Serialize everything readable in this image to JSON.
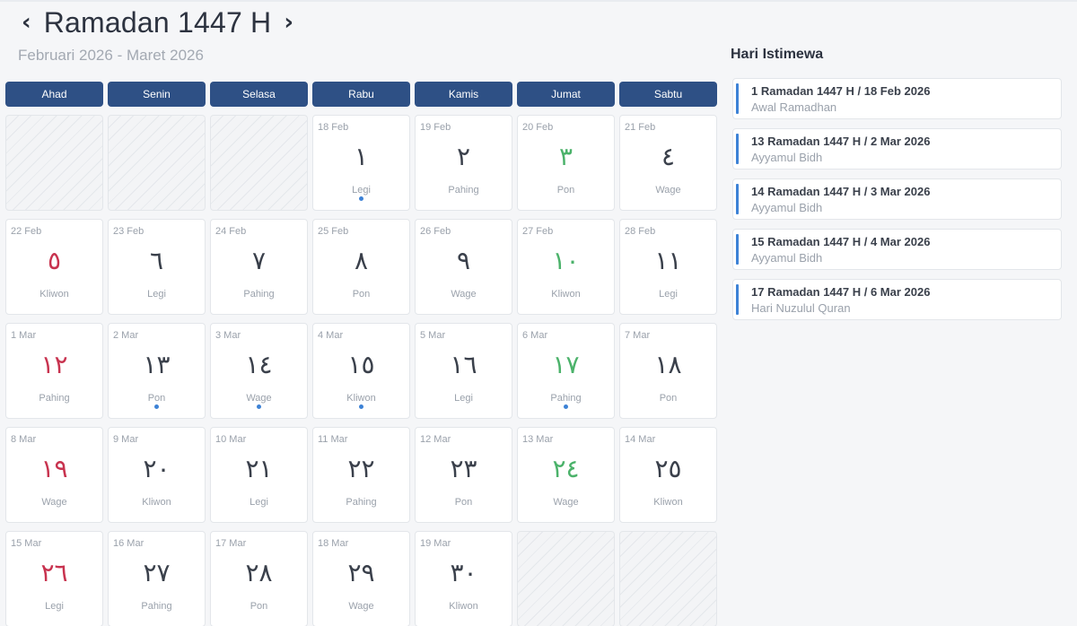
{
  "header": {
    "prev_label": "‹",
    "title": "Ramadan 1447 H",
    "next_label": "›",
    "subtitle": "Februari 2026 - Maret 2026"
  },
  "day_names": [
    "Ahad",
    "Senin",
    "Selasa",
    "Rabu",
    "Kamis",
    "Jumat",
    "Sabtu"
  ],
  "calendar": {
    "leading_empty": 3,
    "trailing_empty": 2,
    "days": [
      {
        "greg": "18 Feb",
        "hijri": "١",
        "pasaran": "Legi",
        "dot": true
      },
      {
        "greg": "19 Feb",
        "hijri": "٢",
        "pasaran": "Pahing",
        "dot": false
      },
      {
        "greg": "20 Feb",
        "hijri": "٣",
        "pasaran": "Pon",
        "dot": false
      },
      {
        "greg": "21 Feb",
        "hijri": "٤",
        "pasaran": "Wage",
        "dot": false
      },
      {
        "greg": "22 Feb",
        "hijri": "٥",
        "pasaran": "Kliwon",
        "dot": false
      },
      {
        "greg": "23 Feb",
        "hijri": "٦",
        "pasaran": "Legi",
        "dot": false
      },
      {
        "greg": "24 Feb",
        "hijri": "٧",
        "pasaran": "Pahing",
        "dot": false
      },
      {
        "greg": "25 Feb",
        "hijri": "٨",
        "pasaran": "Pon",
        "dot": false
      },
      {
        "greg": "26 Feb",
        "hijri": "٩",
        "pasaran": "Wage",
        "dot": false
      },
      {
        "greg": "27 Feb",
        "hijri": "١٠",
        "pasaran": "Kliwon",
        "dot": false
      },
      {
        "greg": "28 Feb",
        "hijri": "١١",
        "pasaran": "Legi",
        "dot": false
      },
      {
        "greg": "1 Mar",
        "hijri": "١٢",
        "pasaran": "Pahing",
        "dot": false
      },
      {
        "greg": "2 Mar",
        "hijri": "١٣",
        "pasaran": "Pon",
        "dot": true
      },
      {
        "greg": "3 Mar",
        "hijri": "١٤",
        "pasaran": "Wage",
        "dot": true
      },
      {
        "greg": "4 Mar",
        "hijri": "١٥",
        "pasaran": "Kliwon",
        "dot": true
      },
      {
        "greg": "5 Mar",
        "hijri": "١٦",
        "pasaran": "Legi",
        "dot": false
      },
      {
        "greg": "6 Mar",
        "hijri": "١٧",
        "pasaran": "Pahing",
        "dot": true
      },
      {
        "greg": "7 Mar",
        "hijri": "١٨",
        "pasaran": "Pon",
        "dot": false
      },
      {
        "greg": "8 Mar",
        "hijri": "١٩",
        "pasaran": "Wage",
        "dot": false
      },
      {
        "greg": "9 Mar",
        "hijri": "٢٠",
        "pasaran": "Kliwon",
        "dot": false
      },
      {
        "greg": "10 Mar",
        "hijri": "٢١",
        "pasaran": "Legi",
        "dot": false
      },
      {
        "greg": "11 Mar",
        "hijri": "٢٢",
        "pasaran": "Pahing",
        "dot": false
      },
      {
        "greg": "12 Mar",
        "hijri": "٢٣",
        "pasaran": "Pon",
        "dot": false
      },
      {
        "greg": "13 Mar",
        "hijri": "٢٤",
        "pasaran": "Wage",
        "dot": false
      },
      {
        "greg": "14 Mar",
        "hijri": "٢٥",
        "pasaran": "Kliwon",
        "dot": false
      },
      {
        "greg": "15 Mar",
        "hijri": "٢٦",
        "pasaran": "Legi",
        "dot": false
      },
      {
        "greg": "16 Mar",
        "hijri": "٢٧",
        "pasaran": "Pahing",
        "dot": false
      },
      {
        "greg": "17 Mar",
        "hijri": "٢٨",
        "pasaran": "Pon",
        "dot": false
      },
      {
        "greg": "18 Mar",
        "hijri": "٢٩",
        "pasaran": "Wage",
        "dot": false
      },
      {
        "greg": "19 Mar",
        "hijri": "٣٠",
        "pasaran": "Kliwon",
        "dot": false
      }
    ]
  },
  "sidebar": {
    "title": "Hari Istimewa",
    "events": [
      {
        "title": "1 Ramadan 1447 H / 18 Feb 2026",
        "desc": "Awal Ramadhan"
      },
      {
        "title": "13 Ramadan 1447 H / 2 Mar 2026",
        "desc": "Ayyamul Bidh"
      },
      {
        "title": "14 Ramadan 1447 H / 3 Mar 2026",
        "desc": "Ayyamul Bidh"
      },
      {
        "title": "15 Ramadan 1447 H / 4 Mar 2026",
        "desc": "Ayyamul Bidh"
      },
      {
        "title": "17 Ramadan 1447 H / 6 Mar 2026",
        "desc": "Hari Nuzulul Quran"
      }
    ]
  },
  "colors": {
    "header_bar": "#2e5085",
    "sunday_number": "#c8334f",
    "friday_number": "#4bb26a",
    "event_dot": "#3d82d6",
    "event_accent": "#3d82d6"
  }
}
